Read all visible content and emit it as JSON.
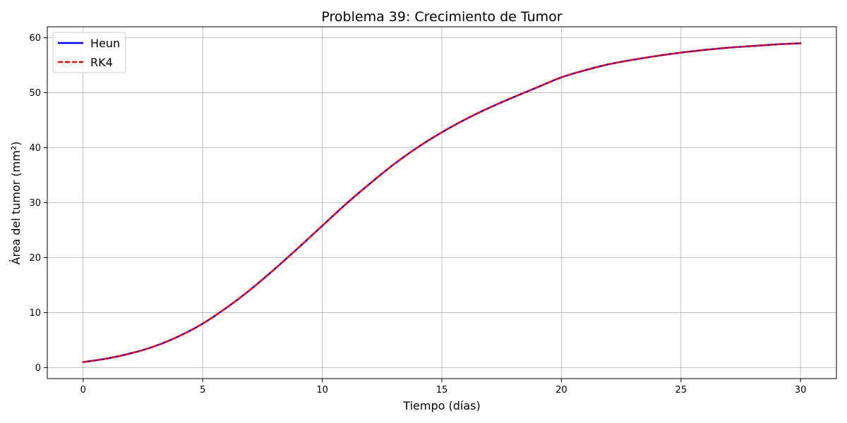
{
  "chart_data": {
    "type": "line",
    "title": "Problema 39: Crecimiento de Tumor",
    "xlabel": "Tiempo (días)",
    "ylabel": "Área del tumor (mm²)",
    "xlim": [
      -1.5,
      31.5
    ],
    "ylim": [
      -2,
      62
    ],
    "xticks": [
      0,
      5,
      10,
      15,
      20,
      25,
      30
    ],
    "yticks": [
      0,
      10,
      20,
      30,
      40,
      50,
      60
    ],
    "grid": true,
    "legend": {
      "placement": "top-left"
    },
    "x": [
      0,
      1,
      2,
      3,
      4,
      5,
      6,
      7,
      8,
      9,
      10,
      11,
      12,
      13,
      14,
      15,
      16,
      17,
      18,
      19,
      20,
      21,
      22,
      23,
      24,
      25,
      26,
      27,
      28,
      29,
      30
    ],
    "series": [
      {
        "name": "Heun",
        "color": "#0000ff",
        "style": "solid",
        "values": [
          1.0,
          1.65,
          2.6,
          3.9,
          5.7,
          8.0,
          10.9,
          14.2,
          17.9,
          21.8,
          25.8,
          29.8,
          33.5,
          37.0,
          40.1,
          42.8,
          45.2,
          47.3,
          49.2,
          51.0,
          52.8,
          54.1,
          55.2,
          56.0,
          56.7,
          57.3,
          57.8,
          58.2,
          58.5,
          58.8,
          59.0
        ]
      },
      {
        "name": "RK4",
        "color": "#ff0000",
        "style": "dashed",
        "values": [
          1.0,
          1.65,
          2.6,
          3.9,
          5.7,
          8.0,
          10.9,
          14.2,
          17.9,
          21.8,
          25.8,
          29.8,
          33.5,
          37.0,
          40.1,
          42.8,
          45.2,
          47.3,
          49.2,
          51.0,
          52.8,
          54.1,
          55.2,
          56.0,
          56.7,
          57.3,
          57.8,
          58.2,
          58.5,
          58.8,
          59.0
        ]
      }
    ]
  }
}
